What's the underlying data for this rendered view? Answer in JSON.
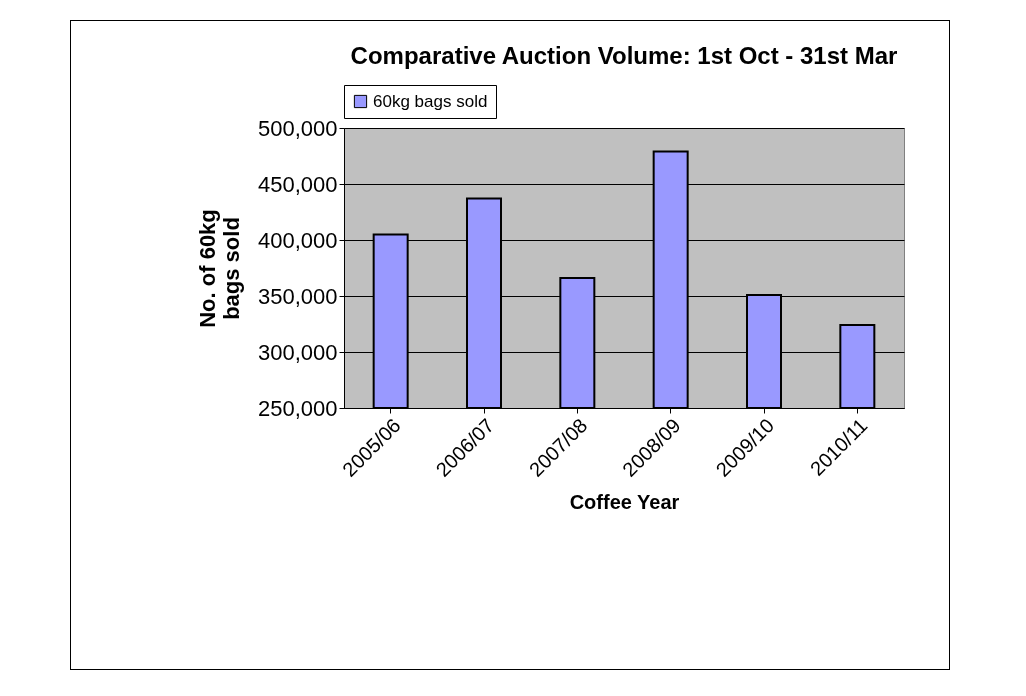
{
  "chart_data": {
    "type": "bar",
    "title": "Comparative Auction Volume: 1st Oct - 31st Mar",
    "xlabel": "Coffee Year",
    "ylabel": "No. of 60kg bags sold",
    "categories": [
      "2005/06",
      "2006/07",
      "2007/08",
      "2008/09",
      "2009/10",
      "2010/11"
    ],
    "series": [
      {
        "name": "60kg bags sold",
        "color": "#9999ff",
        "values": [
          405000,
          437000,
          366000,
          479000,
          351000,
          324000
        ]
      }
    ],
    "ylim": [
      250000,
      500000
    ],
    "yticks": [
      {
        "value": 250000,
        "label": "250,000"
      },
      {
        "value": 300000,
        "label": "300,000"
      },
      {
        "value": 350000,
        "label": "350,000"
      },
      {
        "value": 400000,
        "label": "400,000"
      },
      {
        "value": 450000,
        "label": "450,000"
      },
      {
        "value": 500000,
        "label": "500,000"
      }
    ],
    "grid": "y",
    "legend": "top"
  }
}
